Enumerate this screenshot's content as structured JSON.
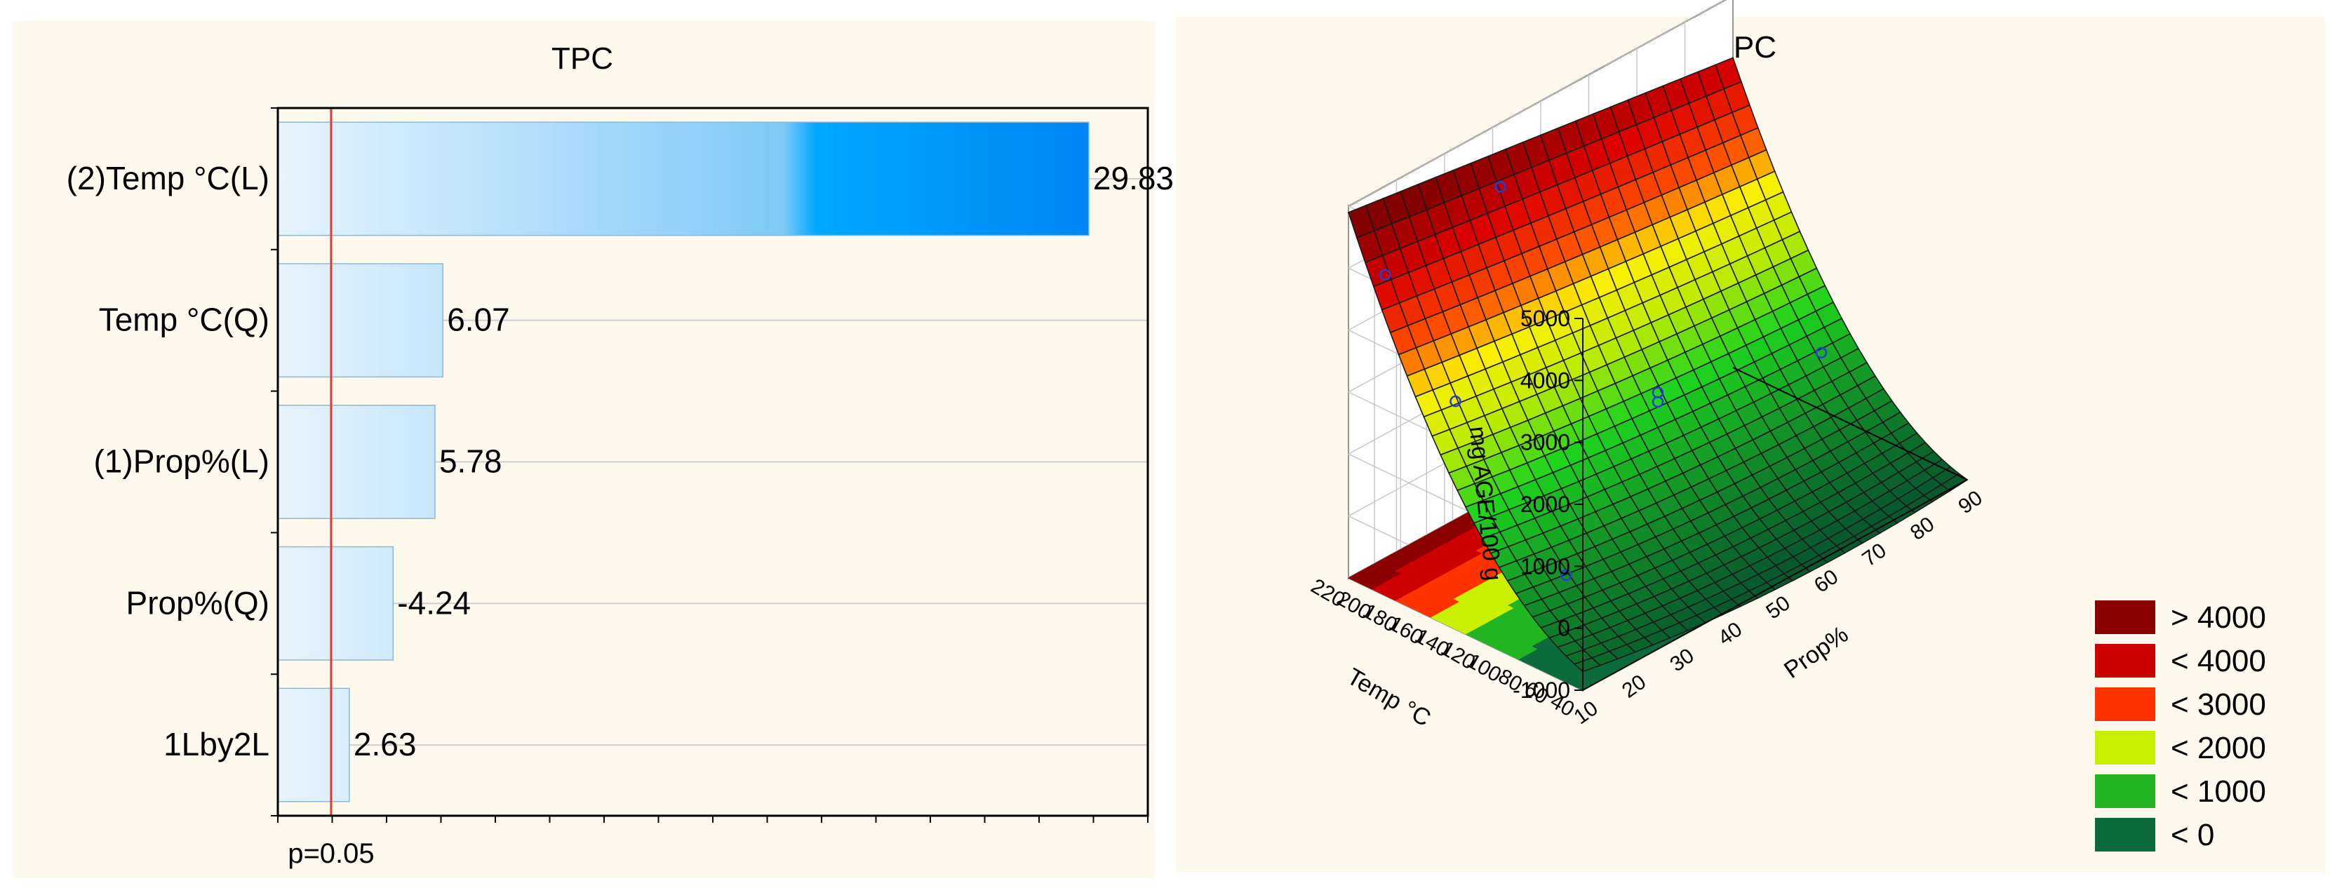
{
  "chart_data": [
    {
      "type": "bar",
      "orientation": "horizontal",
      "title": "TPC",
      "xlabel": "",
      "ylabel": "",
      "categories": [
        "(2)Temp °C(L)",
        "Temp °C(Q)",
        "(1)Prop%(L)",
        "Prop%(Q)",
        "1Lby2L"
      ],
      "values": [
        29.83,
        6.07,
        5.78,
        -4.24,
        2.63
      ],
      "value_labels": [
        "29.83",
        "6.07",
        "5.78",
        "-4.24",
        "2.63"
      ],
      "plotted_as": "absolute value",
      "xlim": [
        0,
        32
      ],
      "reference_line": {
        "value": 1.96,
        "label": "p=0.05",
        "color": "#e53935"
      },
      "grid": true,
      "bar_gradient": [
        "#e8f4fd",
        "#00a9ff",
        "#0085f5"
      ]
    },
    {
      "type": "surface3d",
      "title": "TPC",
      "xlabel": "Prop%",
      "ylabel": "Temp °C",
      "zlabel": "mg AGE/100 g",
      "x_ticks": [
        "10",
        "20",
        "30",
        "40",
        "50",
        "60",
        "70",
        "80",
        "90"
      ],
      "y_ticks": [
        "40",
        "60",
        "80",
        "100",
        "120",
        "140",
        "160",
        "180",
        "200",
        "220"
      ],
      "z_ticks": [
        "-1000",
        "0",
        "1000",
        "2000",
        "3000",
        "4000",
        "5000"
      ],
      "xlim": [
        10,
        90
      ],
      "ylim": [
        40,
        220
      ],
      "zlim": [
        -1000,
        5000
      ],
      "points": [
        {
          "x": 16,
          "y": 214,
          "z": 3700
        },
        {
          "x": 40,
          "y": 214,
          "z": 4100
        },
        {
          "x": 16,
          "y": 160,
          "z": 2200
        },
        {
          "x": 50,
          "y": 130,
          "z": 1050
        },
        {
          "x": 50,
          "y": 130,
          "z": 1200
        },
        {
          "x": 84,
          "y": 130,
          "z": 400
        },
        {
          "x": 16,
          "y": 75,
          "z": 250
        }
      ],
      "legend": {
        "position": "right",
        "entries": [
          {
            "label": "> 4000",
            "color": "#8b0000"
          },
          {
            "label": "< 4000",
            "color": "#cc0000"
          },
          {
            "label": "< 3000",
            "color": "#ff3300"
          },
          {
            "label": "< 2000",
            "color": "#c8f000"
          },
          {
            "label": "< 1000",
            "color": "#22b522"
          },
          {
            "label": "< 0",
            "color": "#0b6b3a"
          }
        ]
      }
    }
  ]
}
